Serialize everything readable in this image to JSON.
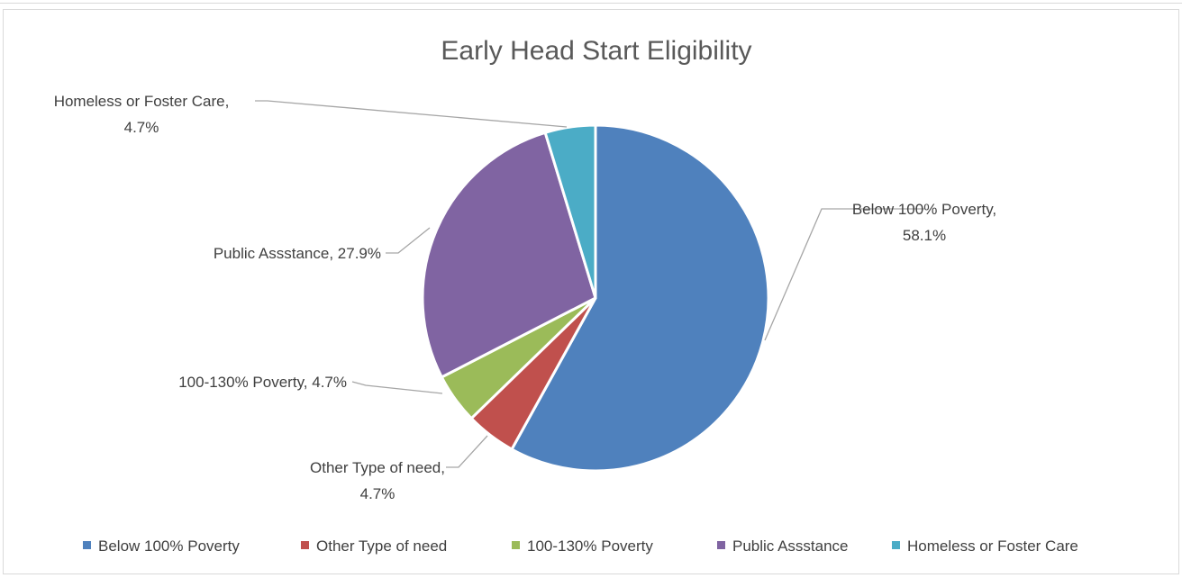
{
  "chart_data": {
    "type": "pie",
    "title": "Early Head Start Eligibility",
    "slices": [
      {
        "name": "Below 100% Poverty",
        "value": 58.1,
        "percent_label": "58.1%",
        "color": "#4f81bd"
      },
      {
        "name": "Other Type of need",
        "value": 4.7,
        "percent_label": "4.7%",
        "color": "#c0504d"
      },
      {
        "name": "100-130% Poverty",
        "value": 4.7,
        "percent_label": "4.7%",
        "color": "#9bbb59"
      },
      {
        "name": "Public Assstance",
        "value": 27.9,
        "percent_label": "27.9%",
        "color": "#8064a2"
      },
      {
        "name": "Homeless or Foster Care",
        "value": 4.7,
        "percent_label": "4.7%",
        "color": "#4bacc6"
      }
    ],
    "start_angle": "12 o'clock",
    "direction": "clockwise",
    "legend_position": "bottom",
    "data_labels": [
      {
        "lines": [
          "Below 100% Poverty,",
          "58.1%"
        ]
      },
      {
        "lines": [
          "Other Type of need,",
          "4.7%"
        ]
      },
      {
        "lines": [
          "100-130% Poverty, 4.7%"
        ]
      },
      {
        "lines": [
          "Public Assstance, 27.9%"
        ]
      },
      {
        "lines": [
          "Homeless or Foster Care,",
          "4.7%"
        ]
      }
    ]
  }
}
